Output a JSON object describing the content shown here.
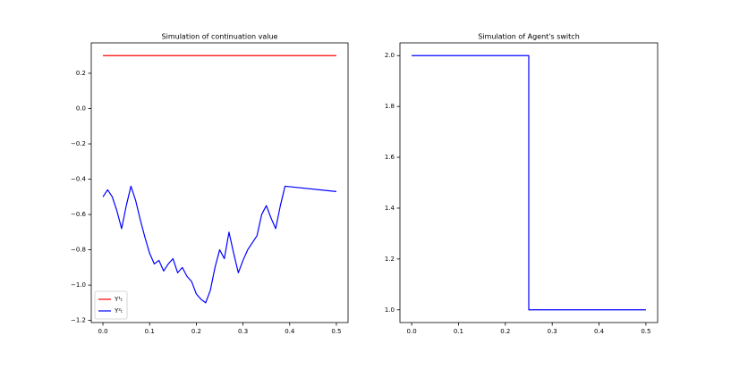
{
  "chart_data": [
    {
      "type": "line",
      "title": "Simulation of continuation value",
      "xlim": [
        -0.025,
        0.525
      ],
      "ylim": [
        -1.212,
        0.372
      ],
      "xticks": [
        {
          "value": 0,
          "label": "0.0"
        },
        0.1,
        0.2,
        0.3,
        0.4,
        0.5
      ],
      "yticks": [
        {
          "value": -1.2,
          "label": "−1.2"
        },
        {
          "value": -1.0,
          "label": "−1.0"
        },
        {
          "value": -0.8,
          "label": "−0.8"
        },
        {
          "value": -0.6,
          "label": "−0.6"
        },
        {
          "value": -0.4,
          "label": "−0.4"
        },
        {
          "value": -0.2,
          "label": "−0.2"
        },
        {
          "value": 0,
          "label": "0.0"
        },
        0.2
      ],
      "legend": "lower left",
      "series": [
        {
          "name": "Y¹ₜ",
          "color": "#ff0000",
          "x": [
            0,
            0.5
          ],
          "values": [
            0.3,
            0.3
          ]
        },
        {
          "name": "Y²ₜ",
          "color": "#0000ff",
          "x": [
            0,
            0.01,
            0.02,
            0.03,
            0.04,
            0.05,
            0.06,
            0.07,
            0.08,
            0.09,
            0.1,
            0.11,
            0.12,
            0.13,
            0.14,
            0.15,
            0.16,
            0.17,
            0.18,
            0.19,
            0.2,
            0.21,
            0.22,
            0.23,
            0.24,
            0.25,
            0.26,
            0.27,
            0.28,
            0.29,
            0.3,
            0.31,
            0.32,
            0.33,
            0.34,
            0.35,
            0.36,
            0.37,
            0.38,
            0.39,
            0.5
          ],
          "values": [
            -0.5,
            -0.46,
            -0.5,
            -0.58,
            -0.68,
            -0.55,
            -0.44,
            -0.52,
            -0.63,
            -0.73,
            -0.82,
            -0.88,
            -0.86,
            -0.92,
            -0.88,
            -0.85,
            -0.93,
            -0.9,
            -0.95,
            -0.98,
            -1.05,
            -1.08,
            -1.1,
            -1.03,
            -0.9,
            -0.8,
            -0.85,
            -0.7,
            -0.82,
            -0.93,
            -0.86,
            -0.8,
            -0.76,
            -0.72,
            -0.6,
            -0.55,
            -0.62,
            -0.68,
            -0.55,
            -0.44,
            -0.47
          ]
        }
      ]
    },
    {
      "type": "line",
      "title": "Simulation of Agent's switch",
      "xlim": [
        -0.025,
        0.525
      ],
      "ylim": [
        0.95,
        2.05
      ],
      "xticks": [
        {
          "value": 0,
          "label": "0.0"
        },
        0.1,
        0.2,
        0.3,
        0.4,
        0.5
      ],
      "yticks": [
        {
          "value": 1.0,
          "label": "1.0"
        },
        1.2,
        1.4,
        1.6,
        1.8,
        {
          "value": 2.0,
          "label": "2.0"
        }
      ],
      "series": [
        {
          "color": "#0000ff",
          "x": [
            0,
            0.25,
            0.25,
            0.5
          ],
          "values": [
            2,
            2,
            1,
            1
          ]
        }
      ]
    }
  ]
}
